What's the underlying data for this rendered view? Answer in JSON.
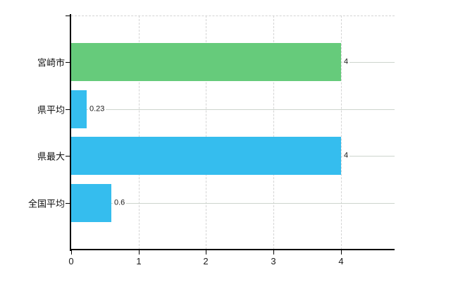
{
  "chart_data": {
    "type": "bar",
    "orientation": "horizontal",
    "title": "",
    "xlabel": "",
    "ylabel": "",
    "categories": [
      "宮崎市",
      "県平均",
      "県最大",
      "全国平均"
    ],
    "values": [
      4,
      0.23,
      4,
      0.6
    ],
    "value_labels": [
      "4",
      "0.23",
      "4",
      "0.6"
    ],
    "bar_colors": [
      "#66cb7b",
      "#35bdee",
      "#35bdee",
      "#35bdee"
    ],
    "xlim": [
      0,
      4.8
    ],
    "xticks": [
      0,
      1,
      2,
      3,
      4
    ],
    "xtick_labels": [
      "0",
      "1",
      "2",
      "3",
      "4"
    ],
    "grid": true,
    "grid_style": "dashed",
    "legend": false,
    "colors": {
      "background": "#ffffff",
      "axis": "#000000",
      "gridline": "#d4d4d4",
      "row_gridline": "#cdd4cd",
      "tick_text": "#1a1a1a",
      "green_series": "#66cb7b",
      "blue_series": "#35bdee"
    }
  }
}
